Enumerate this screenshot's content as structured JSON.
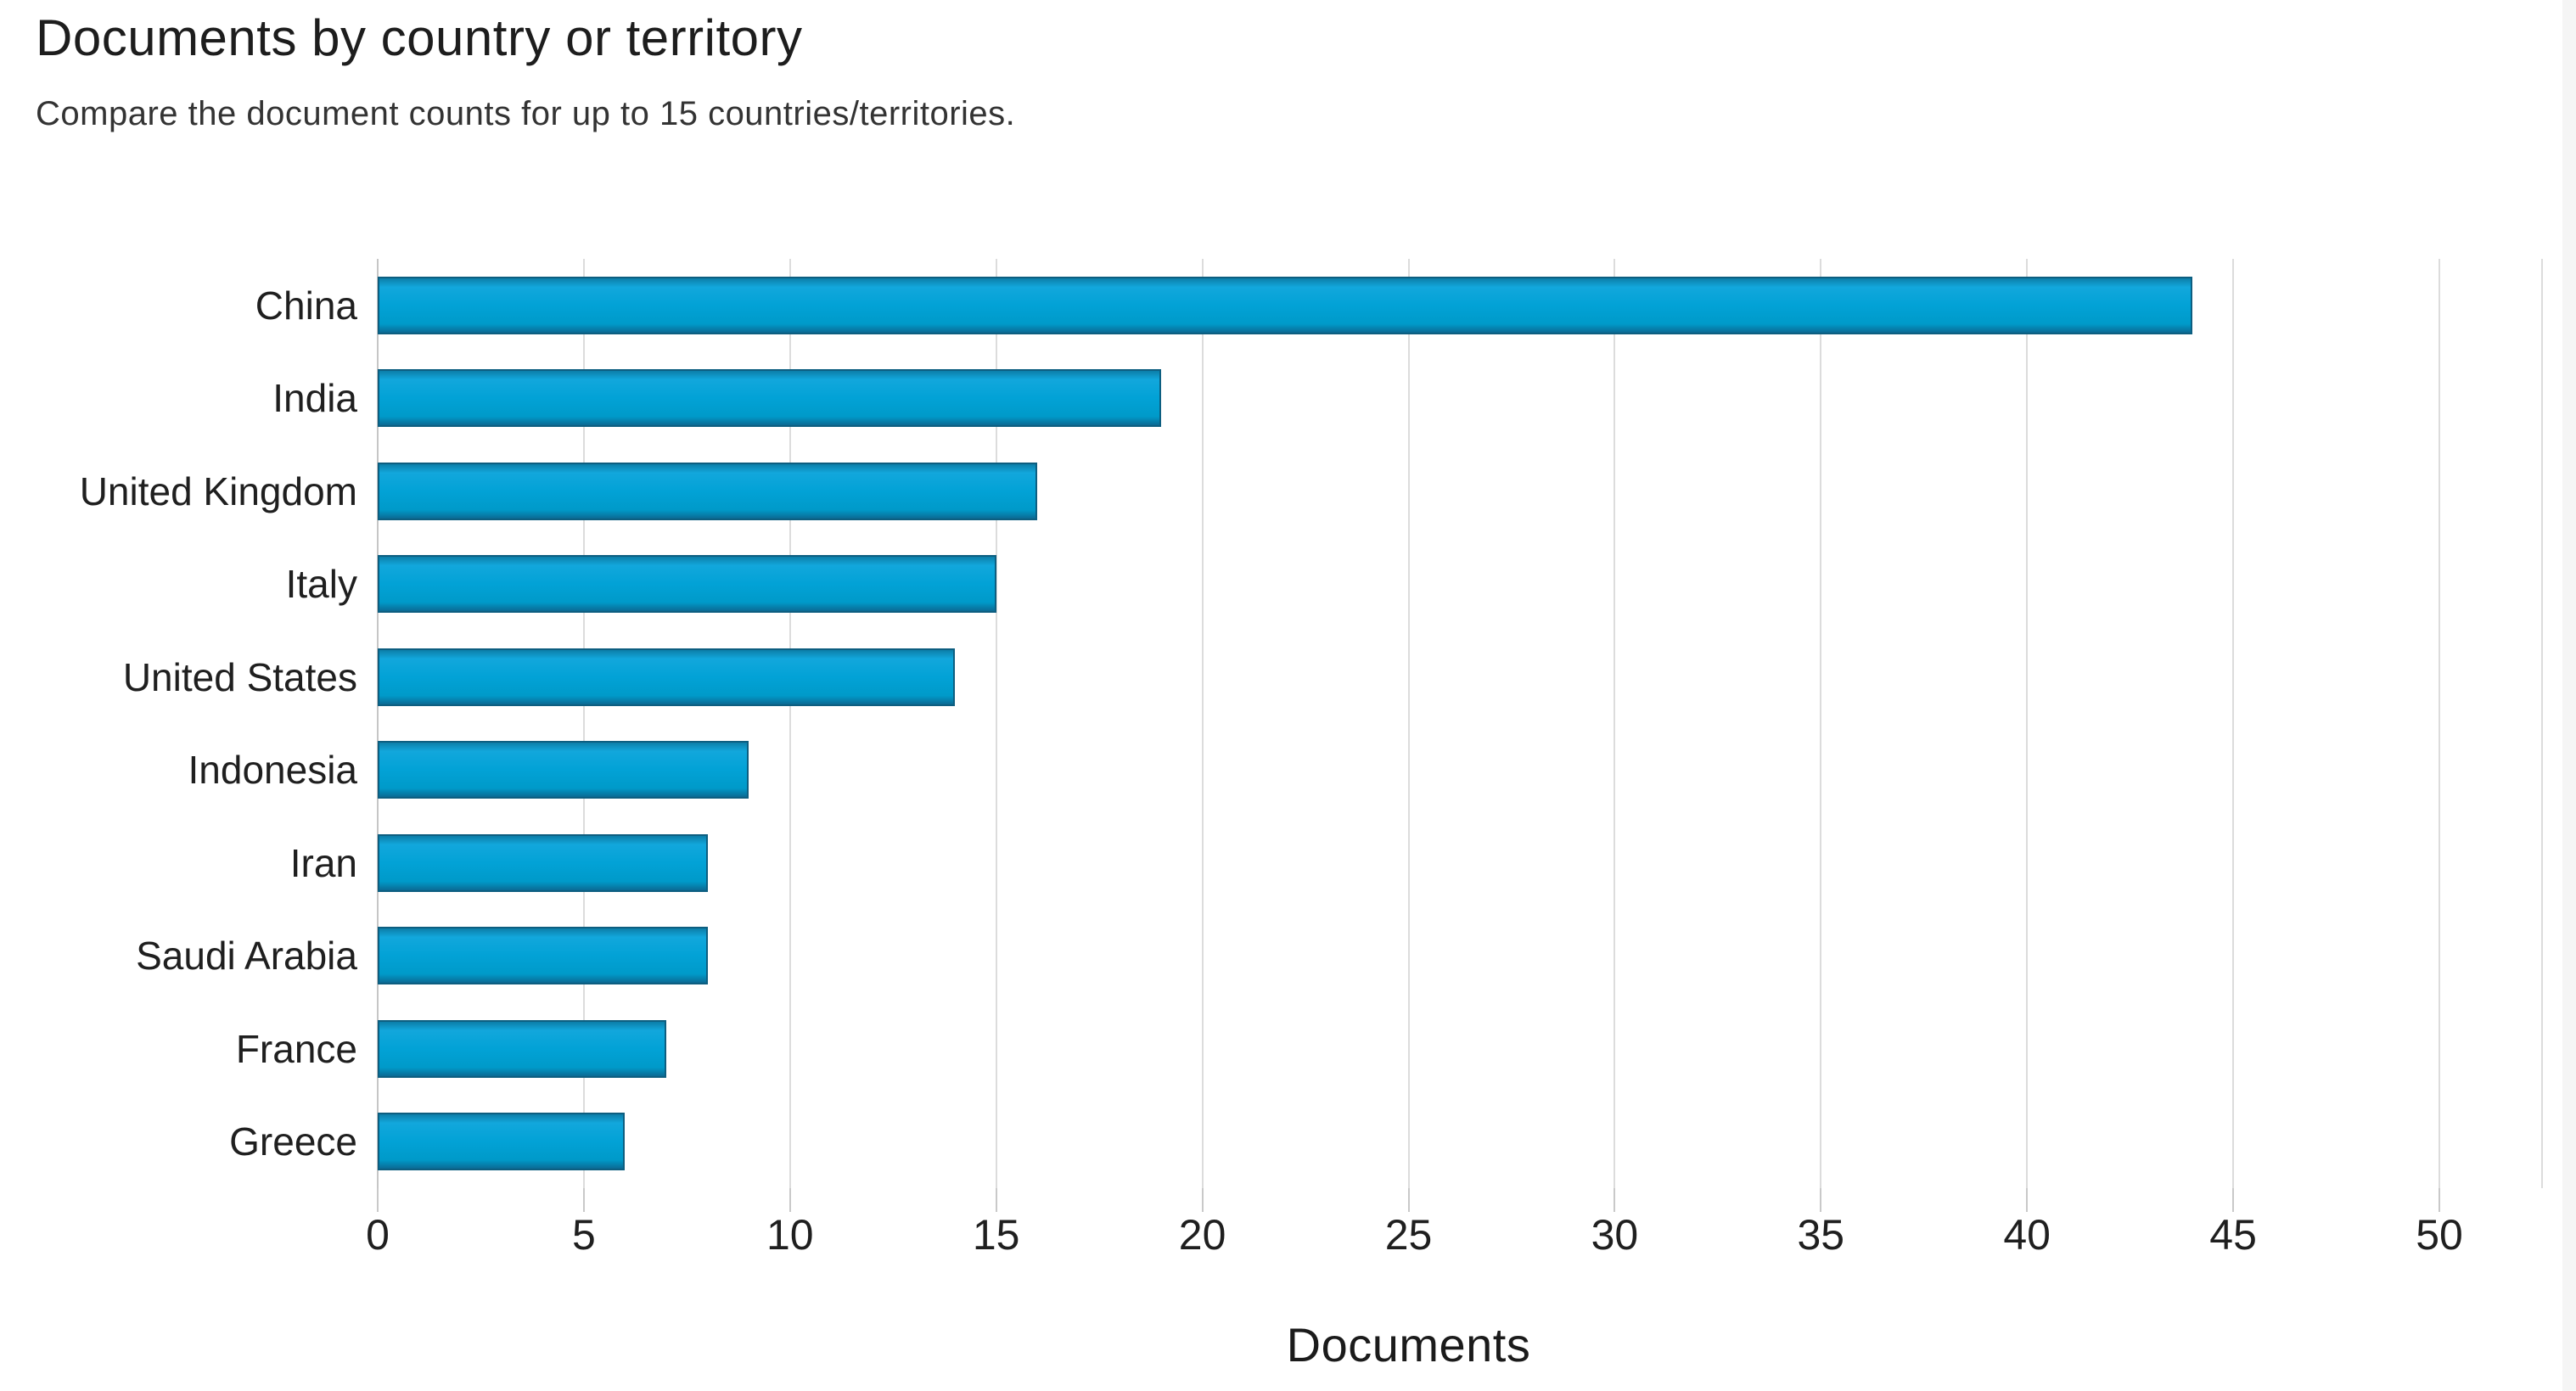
{
  "header": {
    "title": "Documents by country or territory",
    "subtitle": "Compare the document counts for up to 15 countries/territories."
  },
  "chart_data": {
    "type": "bar",
    "orientation": "horizontal",
    "title": "Documents by country or territory",
    "subtitle": "Compare the document counts for up to 15 countries/territories.",
    "categories": [
      "China",
      "India",
      "United Kingdom",
      "Italy",
      "United States",
      "Indonesia",
      "Iran",
      "Saudi Arabia",
      "France",
      "Greece"
    ],
    "values": [
      44,
      19,
      16,
      15,
      14,
      9,
      8,
      8,
      7,
      6
    ],
    "xlabel": "Documents",
    "ylabel": "",
    "xticks": [
      0,
      5,
      10,
      15,
      20,
      25,
      30,
      35,
      40,
      45,
      50
    ],
    "xlim": [
      0,
      52.5
    ],
    "grid": true,
    "legend": "none",
    "colors": {
      "bar_fill": "#02a2d6",
      "bar_border": "#0d5e80",
      "gridline": "#dcdcdc",
      "axis_line": "#c6c6c6",
      "text": "#1f1f1f"
    }
  }
}
